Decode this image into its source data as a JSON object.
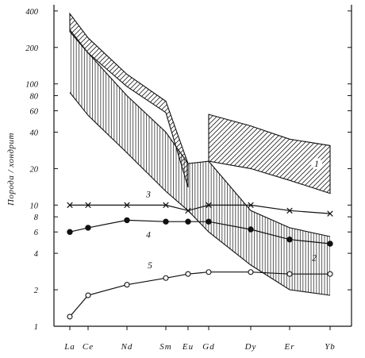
{
  "chart_data": {
    "type": "line",
    "ylabel": "Порода / хондрит",
    "yscale": "log",
    "ylim": [
      1,
      450
    ],
    "categories": [
      "La",
      "Ce",
      "Nd",
      "Sm",
      "Eu",
      "Gd",
      "Dy",
      "Er",
      "Yb"
    ],
    "y_ticks": [
      1,
      2,
      4,
      6,
      8,
      10,
      20,
      40,
      60,
      80,
      100,
      200,
      400
    ],
    "y_tick_labels": [
      "1",
      "2",
      "4",
      "6",
      "8",
      "10",
      "20",
      "40",
      "60",
      "80",
      "100",
      "200",
      "400"
    ],
    "series": [
      {
        "name": "3",
        "marker": "x",
        "values": [
          10,
          10,
          10,
          10,
          9,
          10,
          10,
          9,
          8.5
        ]
      },
      {
        "name": "4",
        "marker": "filled-circle",
        "values": [
          6,
          6.5,
          7.5,
          7.3,
          7.3,
          7.3,
          6.3,
          5.2,
          4.8
        ]
      },
      {
        "name": "5",
        "marker": "open-circle",
        "values": [
          1.2,
          1.8,
          2.2,
          2.5,
          2.7,
          2.8,
          2.8,
          2.7,
          2.7
        ]
      }
    ],
    "bands": [
      {
        "name": "1",
        "pattern": "diagonal",
        "segments": [
          {
            "categories": [
              "La",
              "Ce",
              "Nd",
              "Sm",
              "Eu"
            ],
            "upper": [
              380,
              240,
              120,
              72,
              22
            ],
            "lower": [
              270,
              180,
              95,
              58,
              14
            ]
          },
          {
            "categories": [
              "Gd",
              "Dy",
              "Er",
              "Yb"
            ],
            "upper": [
              56,
              45,
              35,
              31
            ],
            "lower": [
              23,
              20,
              16,
              12.5
            ]
          }
        ]
      },
      {
        "name": "2",
        "pattern": "vertical",
        "categories": [
          "La",
          "Ce",
          "Nd",
          "Sm",
          "Eu",
          "Gd",
          "Dy",
          "Er",
          "Yb"
        ],
        "upper": [
          280,
          180,
          80,
          40,
          22,
          23,
          9,
          6.5,
          5.5
        ],
        "lower": [
          85,
          55,
          27,
          13,
          9,
          6,
          3.2,
          2,
          1.8
        ]
      }
    ]
  }
}
